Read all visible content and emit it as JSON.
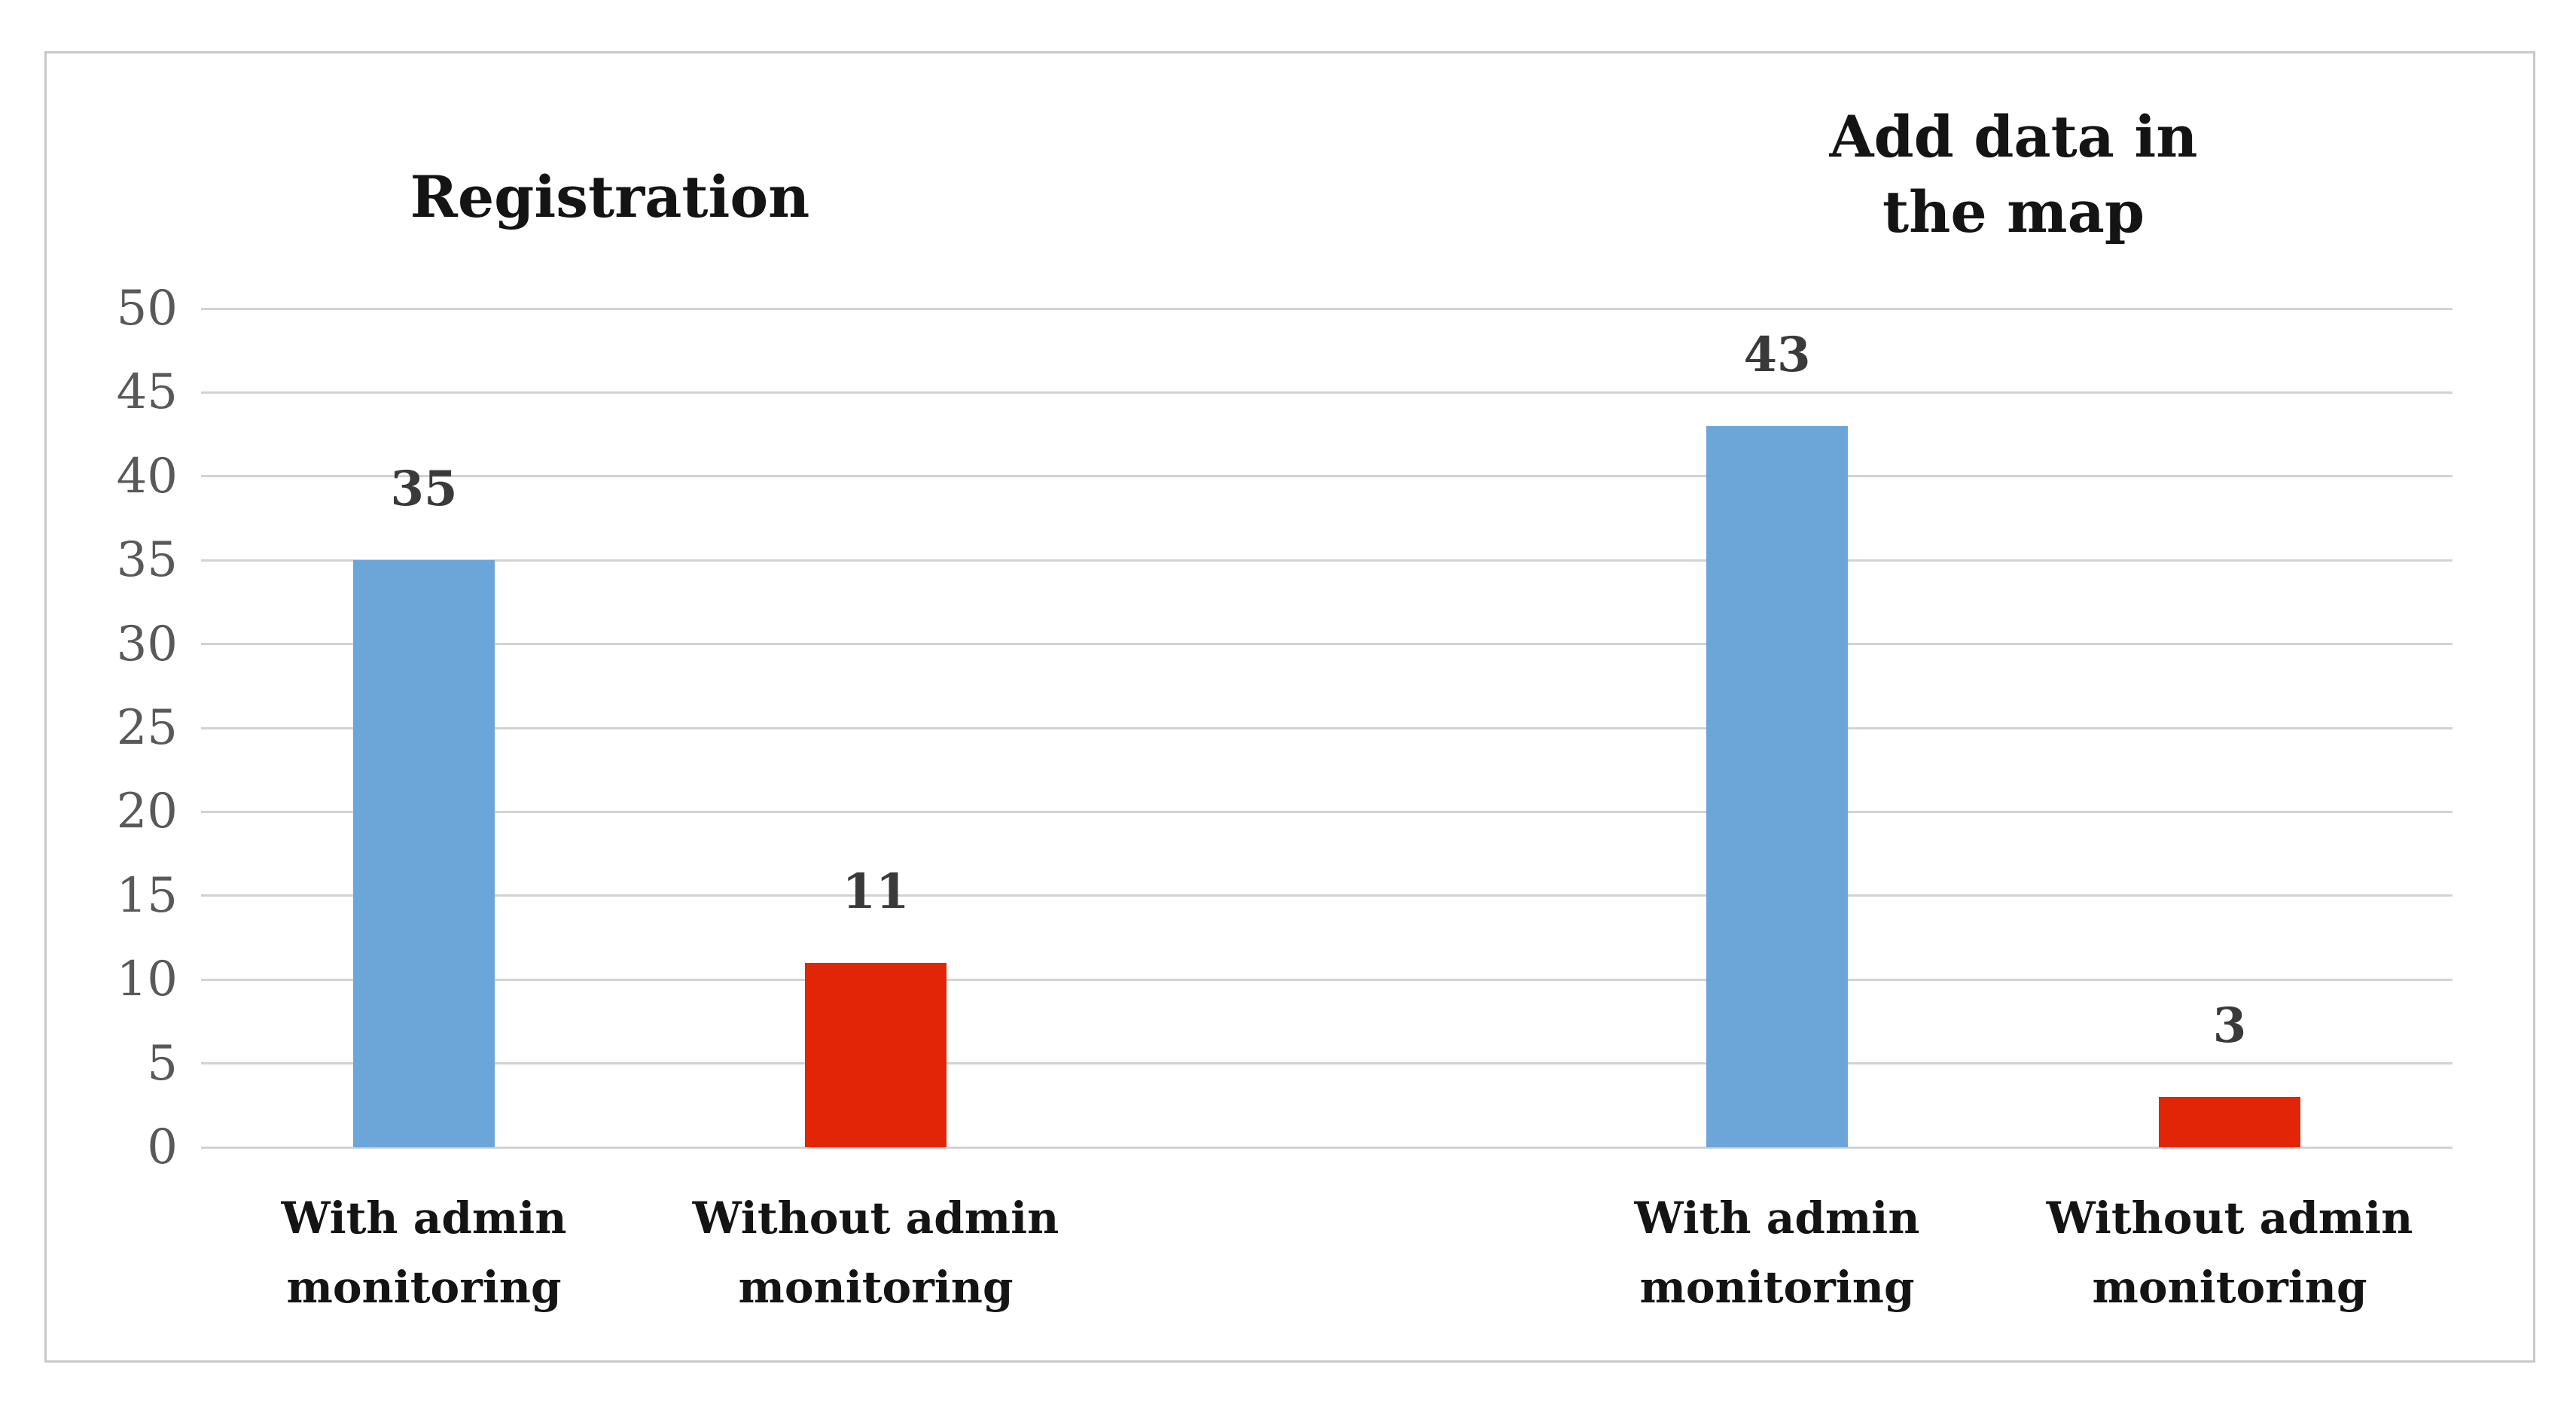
{
  "chart_data": {
    "type": "bar",
    "ylim": [
      0,
      50
    ],
    "yticks": [
      0,
      5,
      10,
      15,
      20,
      25,
      30,
      35,
      40,
      45,
      50
    ],
    "grid": "horizontal",
    "legend": "none",
    "xlabel": "",
    "ylabel": "",
    "groups": [
      {
        "title": "Registration",
        "categories": [
          "With admin\nmonitoring",
          "Without admin\nmonitoring"
        ],
        "values": [
          35,
          11
        ],
        "data_labels": [
          "35",
          "11"
        ],
        "bar_colors": [
          "#6CA6D9",
          "#E22507"
        ]
      },
      {
        "title": "Add data in\nthe map",
        "categories": [
          "With admin\nmonitoring",
          "Without admin\nmonitoring"
        ],
        "values": [
          43,
          3
        ],
        "data_labels": [
          "43",
          "3"
        ],
        "bar_colors": [
          "#6CA6D9",
          "#E22507"
        ]
      }
    ]
  },
  "colors": {
    "bar_blue": "#6CA6D9",
    "bar_red": "#E22507",
    "gridline": "#D2D2D2",
    "tick_label": "#595959",
    "value_label": "#3A3A3A",
    "category_label": "#141414",
    "frame_border": "#C9C9C9",
    "background": "#FFFFFF"
  }
}
